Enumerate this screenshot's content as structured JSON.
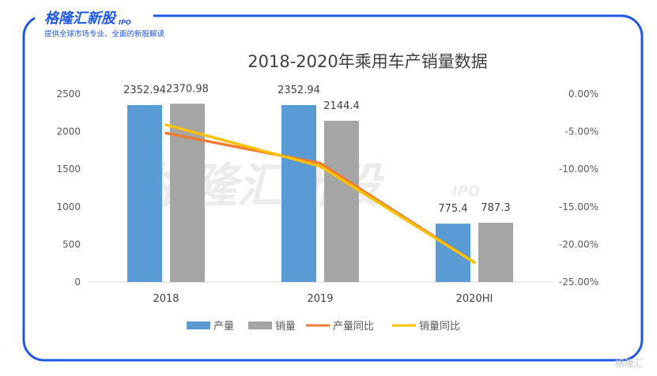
{
  "header": {
    "logo_text": "格隆汇新股",
    "logo_sub": "IPO",
    "tagline": "提供全球市场专业、全面的新股解读"
  },
  "watermark": {
    "main": "格隆汇新股",
    "sub": "IPO",
    "corner": "格隆汇"
  },
  "colors": {
    "frame": "#1f57e6",
    "production_bar": "#5b9bd5",
    "sales_bar": "#a5a5a5",
    "production_yoy": "#ed7d31",
    "sales_yoy": "#ffc000"
  },
  "chart_data": {
    "type": "bar",
    "title": "2018-2020年乘用车产销量数据",
    "categories": [
      "2018",
      "2019",
      "2020HI"
    ],
    "series": [
      {
        "name": "产量",
        "type": "bar",
        "axis": "left",
        "values": [
          2352.94,
          2352.94,
          775.4
        ],
        "labels": [
          "2352.94",
          "2352.94",
          "775.4"
        ]
      },
      {
        "name": "销量",
        "type": "bar",
        "axis": "left",
        "values": [
          2370.98,
          2144.4,
          787.3
        ],
        "labels": [
          "2370.98",
          "2144.4",
          "787.3"
        ]
      },
      {
        "name": "产量同比",
        "type": "line",
        "axis": "right",
        "values": [
          -5.2,
          -9.2,
          -22.4
        ]
      },
      {
        "name": "销量同比",
        "type": "line",
        "axis": "right",
        "values": [
          -4.1,
          -9.6,
          -22.4
        ]
      }
    ],
    "left_axis": {
      "min": 0,
      "max": 2500,
      "ticks": [
        0,
        500,
        1000,
        1500,
        2000,
        2500
      ],
      "tick_labels": [
        "0",
        "500",
        "1000",
        "1500",
        "2000",
        "2500"
      ]
    },
    "right_axis": {
      "min": -25,
      "max": 0,
      "ticks": [
        0,
        -5,
        -10,
        -15,
        -20,
        -25
      ],
      "tick_labels": [
        "0.00%",
        "-5.00%",
        "-10.00%",
        "-15.00%",
        "-20.00%",
        "-25.00%"
      ]
    },
    "grid": false,
    "legend": "bottom"
  }
}
